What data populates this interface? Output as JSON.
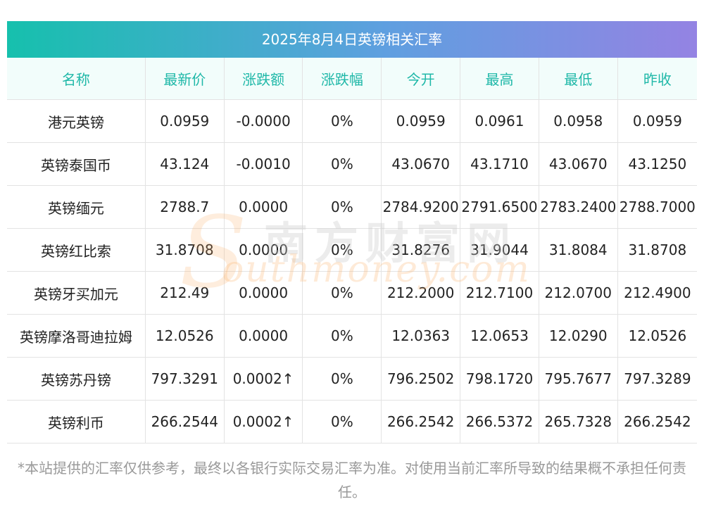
{
  "title": "2025年8月4日英镑相关汇率",
  "columns": [
    "名称",
    "最新价",
    "涨跌额",
    "涨跌幅",
    "今开",
    "最高",
    "最低",
    "昨收"
  ],
  "rows": [
    {
      "name": "港元英镑",
      "latest": "0.0959",
      "change": "-0.0000",
      "pct": "0%",
      "open": "0.0959",
      "high": "0.0961",
      "low": "0.0958",
      "prev": "0.0959",
      "up": false
    },
    {
      "name": "英镑泰国币",
      "latest": "43.124",
      "change": "-0.0010",
      "pct": "0%",
      "open": "43.0670",
      "high": "43.1710",
      "low": "43.0670",
      "prev": "43.1250",
      "up": false
    },
    {
      "name": "英镑缅元",
      "latest": "2788.7",
      "change": "0.0000",
      "pct": "0%",
      "open": "2784.9200",
      "high": "2791.6500",
      "low": "2783.2400",
      "prev": "2788.7000",
      "up": false
    },
    {
      "name": "英镑红比索",
      "latest": "31.8708",
      "change": "0.0000",
      "pct": "0%",
      "open": "31.8276",
      "high": "31.9044",
      "low": "31.8084",
      "prev": "31.8708",
      "up": false
    },
    {
      "name": "英镑牙买加元",
      "latest": "212.49",
      "change": "0.0000",
      "pct": "0%",
      "open": "212.2000",
      "high": "212.7100",
      "low": "212.0700",
      "prev": "212.4900",
      "up": false
    },
    {
      "name": "英镑摩洛哥迪拉姆",
      "latest": "12.0526",
      "change": "0.0000",
      "pct": "0%",
      "open": "12.0363",
      "high": "12.0653",
      "low": "12.0290",
      "prev": "12.0526",
      "up": false
    },
    {
      "name": "英镑苏丹镑",
      "latest": "797.3291",
      "change": "0.0002↑",
      "pct": "0%",
      "open": "796.2502",
      "high": "798.1720",
      "low": "795.7677",
      "prev": "797.3289",
      "up": true
    },
    {
      "name": "英镑利币",
      "latest": "266.2544",
      "change": "0.0002↑",
      "pct": "0%",
      "open": "266.2542",
      "high": "266.5372",
      "low": "265.7328",
      "prev": "266.2542",
      "up": true
    }
  ],
  "watermark": {
    "cn": "南方财富网",
    "en": "outhmoney.com",
    "s": "S"
  },
  "footnote": "*本站提供的汇率仅供参考，最终以各银行实际交易汇率为准。对使用当前汇率所导致的结果概不承担任何责任。",
  "colors": {
    "header_text": "#1fb8a8",
    "header_bg": "#f2fdfb",
    "up": "#ee1111",
    "title_gradient": [
      "#16c0ad",
      "#5f9fe0",
      "#9483e3"
    ]
  }
}
